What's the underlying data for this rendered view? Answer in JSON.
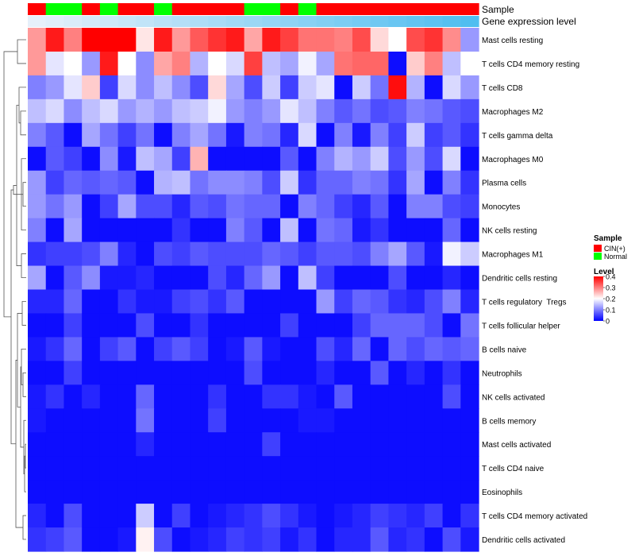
{
  "chart_data": {
    "type": "heatmap",
    "annotation_labels": {
      "sample": "Sample",
      "expression": "Gene expression level"
    },
    "sample_groups": [
      "CIN(+)",
      "Normal",
      "Normal",
      "CIN(+)",
      "Normal",
      "CIN(+)",
      "CIN(+)",
      "Normal",
      "CIN(+)",
      "CIN(+)",
      "CIN(+)",
      "CIN(+)",
      "Normal",
      "Normal",
      "CIN(+)",
      "Normal",
      "CIN(+)",
      "CIN(+)",
      "CIN(+)",
      "CIN(+)",
      "CIN(+)",
      "CIN(+)",
      "CIN(+)",
      "CIN(+)",
      "CIN(+)"
    ],
    "expression_annotation": [
      0.02,
      0.03,
      0.04,
      0.05,
      0.06,
      0.07,
      0.08,
      0.09,
      0.1,
      0.11,
      0.12,
      0.13,
      0.14,
      0.15,
      0.16,
      0.17,
      0.18,
      0.19,
      0.2,
      0.21,
      0.22,
      0.23,
      0.24,
      0.25,
      0.26
    ],
    "rows": [
      "Mast cells resting",
      "T cells CD4 memory resting",
      "T cells CD8",
      "Macrophages M2",
      "T cells gamma delta",
      "Macrophages M0",
      "Plasma cells",
      "Monocytes",
      "NK cells resting",
      "Macrophages M1",
      "Dendritic cells resting",
      "T cells regulatory  Tregs",
      "T cells follicular helper",
      "B cells naive",
      "Neutrophils",
      "NK cells activated",
      "B cells memory",
      "Mast cells activated",
      "T cells CD4 naive",
      "Eosinophils",
      "T cells CD4 memory activated",
      "Dendritic cells activated"
    ],
    "values": [
      [
        0.28,
        0.38,
        0.3,
        0.4,
        0.4,
        0.4,
        0.22,
        0.38,
        0.28,
        0.33,
        0.36,
        0.38,
        0.27,
        0.38,
        0.35,
        0.31,
        0.31,
        0.3,
        0.34,
        0.23,
        0.2,
        0.34,
        0.36,
        0.29,
        0.12
      ],
      [
        0.28,
        0.18,
        0.2,
        0.12,
        0.38,
        0.2,
        0.11,
        0.27,
        0.3,
        0.14,
        0.2,
        0.17,
        0.35,
        0.15,
        0.13,
        0.19,
        0.13,
        0.31,
        0.32,
        0.32,
        0.01,
        0.24,
        0.3,
        0.15,
        0.2
      ],
      [
        0.1,
        0.12,
        0.18,
        0.24,
        0.05,
        0.17,
        0.11,
        0.15,
        0.11,
        0.06,
        0.23,
        0.13,
        0.06,
        0.16,
        0.05,
        0.16,
        0.18,
        0.01,
        0.16,
        0.09,
        0.39,
        0.14,
        0.01,
        0.17,
        0.12
      ],
      [
        0.15,
        0.17,
        0.11,
        0.15,
        0.17,
        0.12,
        0.14,
        0.12,
        0.15,
        0.16,
        0.19,
        0.12,
        0.1,
        0.12,
        0.18,
        0.15,
        0.1,
        0.07,
        0.09,
        0.06,
        0.07,
        0.1,
        0.09,
        0.07,
        0.06
      ],
      [
        0.1,
        0.07,
        0.01,
        0.13,
        0.09,
        0.05,
        0.09,
        0.01,
        0.1,
        0.13,
        0.09,
        0.02,
        0.1,
        0.09,
        0.03,
        0.17,
        0.01,
        0.1,
        0.02,
        0.1,
        0.05,
        0.16,
        0.05,
        0.07,
        0.04
      ],
      [
        0.01,
        0.07,
        0.05,
        0.01,
        0.11,
        0.02,
        0.15,
        0.13,
        0.05,
        0.26,
        0.01,
        0.01,
        0.01,
        0.01,
        0.07,
        0.01,
        0.1,
        0.14,
        0.12,
        0.16,
        0.06,
        0.12,
        0.06,
        0.17,
        0.01
      ],
      [
        0.12,
        0.05,
        0.08,
        0.07,
        0.08,
        0.07,
        0.01,
        0.14,
        0.15,
        0.09,
        0.11,
        0.11,
        0.1,
        0.06,
        0.16,
        0.04,
        0.08,
        0.08,
        0.1,
        0.09,
        0.04,
        0.13,
        0.01,
        0.1,
        0.04
      ],
      [
        0.12,
        0.09,
        0.12,
        0.01,
        0.05,
        0.13,
        0.06,
        0.06,
        0.03,
        0.07,
        0.06,
        0.09,
        0.08,
        0.08,
        0.01,
        0.1,
        0.08,
        0.05,
        0.03,
        0.07,
        0.01,
        0.1,
        0.1,
        0.06,
        0.05
      ],
      [
        0.1,
        0.01,
        0.13,
        0.01,
        0.01,
        0.01,
        0.01,
        0.01,
        0.04,
        0.01,
        0.01,
        0.1,
        0.07,
        0.01,
        0.15,
        0.01,
        0.09,
        0.08,
        0.02,
        0.04,
        0.01,
        0.01,
        0.01,
        0.08,
        0.01
      ],
      [
        0.04,
        0.05,
        0.05,
        0.06,
        0.1,
        0.03,
        0.01,
        0.06,
        0.05,
        0.07,
        0.06,
        0.06,
        0.06,
        0.08,
        0.07,
        0.05,
        0.07,
        0.07,
        0.06,
        0.1,
        0.13,
        0.07,
        0.02,
        0.19,
        0.16
      ],
      [
        0.13,
        0.01,
        0.07,
        0.11,
        0.02,
        0.02,
        0.03,
        0.01,
        0.01,
        0.01,
        0.06,
        0.03,
        0.08,
        0.12,
        0.01,
        0.15,
        0.05,
        0.01,
        0.01,
        0.01,
        0.06,
        0.01,
        0.01,
        0.03,
        0.01
      ],
      [
        0.03,
        0.03,
        0.08,
        0.01,
        0.01,
        0.04,
        0.02,
        0.02,
        0.05,
        0.06,
        0.04,
        0.07,
        0.01,
        0.01,
        0.01,
        0.01,
        0.12,
        0.05,
        0.08,
        0.07,
        0.04,
        0.03,
        0.06,
        0.1,
        0.03
      ],
      [
        0.01,
        0.01,
        0.05,
        0.01,
        0.01,
        0.01,
        0.06,
        0.01,
        0.01,
        0.04,
        0.01,
        0.01,
        0.01,
        0.01,
        0.05,
        0.01,
        0.01,
        0.01,
        0.05,
        0.08,
        0.08,
        0.08,
        0.06,
        0.01,
        0.09
      ],
      [
        0.02,
        0.04,
        0.08,
        0.01,
        0.05,
        0.07,
        0.01,
        0.05,
        0.07,
        0.05,
        0.01,
        0.02,
        0.07,
        0.02,
        0.01,
        0.01,
        0.06,
        0.03,
        0.08,
        0.01,
        0.08,
        0.06,
        0.08,
        0.07,
        0.08
      ],
      [
        0.01,
        0.01,
        0.05,
        0.01,
        0.01,
        0.01,
        0.01,
        0.01,
        0.01,
        0.01,
        0.01,
        0.01,
        0.06,
        0.01,
        0.01,
        0.01,
        0.03,
        0.01,
        0.01,
        0.07,
        0.01,
        0.03,
        0.01,
        0.04,
        0.01
      ],
      [
        0.02,
        0.04,
        0.01,
        0.03,
        0.01,
        0.01,
        0.08,
        0.01,
        0.01,
        0.01,
        0.04,
        0.01,
        0.01,
        0.04,
        0.04,
        0.02,
        0.01,
        0.07,
        0.01,
        0.01,
        0.01,
        0.01,
        0.01,
        0.06,
        0.01
      ],
      [
        0.02,
        0.01,
        0.01,
        0.01,
        0.01,
        0.01,
        0.09,
        0.01,
        0.01,
        0.01,
        0.05,
        0.01,
        0.01,
        0.01,
        0.01,
        0.02,
        0.02,
        0.01,
        0.01,
        0.01,
        0.01,
        0.01,
        0.01,
        0.01,
        0.01
      ],
      [
        0.01,
        0.01,
        0.01,
        0.01,
        0.01,
        0.01,
        0.03,
        0.01,
        0.01,
        0.01,
        0.01,
        0.01,
        0.01,
        0.05,
        0.01,
        0.01,
        0.01,
        0.01,
        0.01,
        0.01,
        0.01,
        0.01,
        0.01,
        0.01,
        0.01
      ],
      [
        0.01,
        0.01,
        0.01,
        0.01,
        0.01,
        0.01,
        0.01,
        0.01,
        0.01,
        0.01,
        0.01,
        0.01,
        0.01,
        0.01,
        0.01,
        0.01,
        0.01,
        0.01,
        0.01,
        0.01,
        0.01,
        0.01,
        0.01,
        0.01,
        0.01
      ],
      [
        0.01,
        0.01,
        0.01,
        0.01,
        0.01,
        0.01,
        0.01,
        0.01,
        0.01,
        0.01,
        0.01,
        0.01,
        0.01,
        0.01,
        0.01,
        0.01,
        0.01,
        0.01,
        0.01,
        0.01,
        0.01,
        0.01,
        0.01,
        0.01,
        0.01
      ],
      [
        0.03,
        0.01,
        0.06,
        0.01,
        0.01,
        0.01,
        0.16,
        0.01,
        0.05,
        0.01,
        0.02,
        0.03,
        0.04,
        0.06,
        0.04,
        0.02,
        0.01,
        0.02,
        0.03,
        0.05,
        0.04,
        0.03,
        0.05,
        0.01,
        0.04
      ],
      [
        0.04,
        0.05,
        0.07,
        0.01,
        0.01,
        0.02,
        0.21,
        0.06,
        0.01,
        0.02,
        0.03,
        0.05,
        0.04,
        0.05,
        0.02,
        0.04,
        0.01,
        0.03,
        0.03,
        0.07,
        0.03,
        0.04,
        0.01,
        0.06,
        0.02
      ]
    ],
    "color_scale": {
      "min": 0,
      "max": 0.4,
      "low": "#0000ff",
      "mid": "#ffffff",
      "high": "#ff0000",
      "mid_value": 0.2
    },
    "annotation_colors": {
      "CIN(+)": "#ff0000",
      "Normal": "#00ff00"
    },
    "legend": {
      "sample_title": "Sample",
      "sample_entries": [
        "CIN(+)",
        "Normal"
      ],
      "level_title": "Level",
      "level_ticks": [
        "0.4",
        "0.3",
        "0.2",
        "0.1",
        "0"
      ],
      "level_tick_values": [
        0.4,
        0.3,
        0.2,
        0.1,
        0
      ]
    },
    "row_dendrogram": true
  }
}
